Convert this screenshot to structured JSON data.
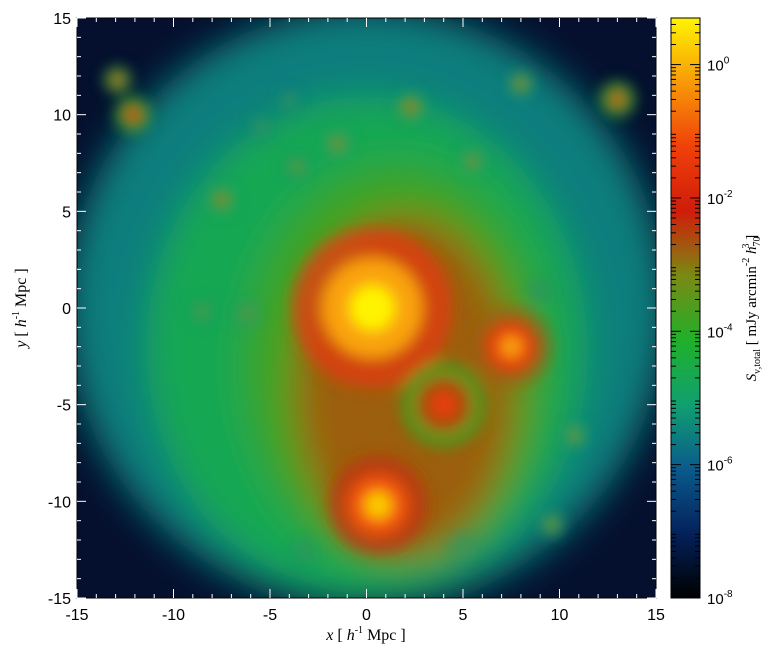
{
  "chart_data": {
    "type": "heatmap",
    "title": "",
    "x_axis": {
      "label_var": "x",
      "label_unit_h": "h",
      "label_unit_exp": "-1",
      "label_unit_rest": "Mpc",
      "range": [
        -15,
        15
      ],
      "ticks": [
        -15,
        -10,
        -5,
        0,
        5,
        10,
        15
      ],
      "tick_labels": [
        "-15",
        "-10",
        "-5",
        "0",
        "5",
        "10",
        "15"
      ]
    },
    "y_axis": {
      "label_var": "y",
      "label_unit_h": "h",
      "label_unit_exp": "-1",
      "label_unit_rest": "Mpc",
      "range": [
        -15,
        15
      ],
      "ticks": [
        -15,
        -10,
        -5,
        0,
        5,
        10,
        15
      ],
      "tick_labels": [
        "-15",
        "-10",
        "-5",
        "0",
        "5",
        "10",
        "15"
      ]
    },
    "colorbar": {
      "scale": "log",
      "range": [
        1e-08,
        5
      ],
      "ticks": [
        1e-08,
        1e-06,
        0.0001,
        0.01,
        1
      ],
      "tick_mantissa": [
        "10",
        "10",
        "10",
        "10",
        "10"
      ],
      "tick_exponents": [
        "-8",
        "-6",
        "-4",
        "-2",
        "0"
      ],
      "label_S": "S",
      "label_sub": "ν,total",
      "label_units_pre": "mJy arcmin",
      "label_units_exp1": "-2",
      "label_units_h": "h",
      "label_units_hsub": "70",
      "label_units_hsup": "3",
      "colors": [
        "#000000",
        "#04215a",
        "#0a5a8c",
        "#10a070",
        "#20b02a",
        "#7a8a14",
        "#d01c0a",
        "#f0400a",
        "#f89a08",
        "#fff400"
      ]
    },
    "sources": [
      {
        "x": 0.3,
        "y": 0.0,
        "level": 1.0,
        "size": 2.6
      },
      {
        "x": 7.5,
        "y": -2.0,
        "level": 0.85,
        "size": 1.3
      },
      {
        "x": 0.6,
        "y": -10.2,
        "level": 0.9,
        "size": 1.6
      },
      {
        "x": 4.0,
        "y": -5.0,
        "level": 0.72,
        "size": 1.4
      },
      {
        "x": -12.9,
        "y": 11.8,
        "level": 0.65,
        "size": 0.45
      },
      {
        "x": -12.1,
        "y": 10.0,
        "level": 0.68,
        "size": 0.6
      },
      {
        "x": 13.0,
        "y": 10.8,
        "level": 0.66,
        "size": 0.6
      },
      {
        "x": 8.0,
        "y": 11.6,
        "level": 0.6,
        "size": 0.4
      },
      {
        "x": 2.3,
        "y": 10.4,
        "level": 0.62,
        "size": 0.45
      },
      {
        "x": -1.5,
        "y": 8.5,
        "level": 0.58,
        "size": 0.45
      },
      {
        "x": -7.5,
        "y": 5.6,
        "level": 0.6,
        "size": 0.45
      },
      {
        "x": -3.6,
        "y": 7.3,
        "level": 0.55,
        "size": 0.4
      },
      {
        "x": 5.5,
        "y": 7.6,
        "level": 0.58,
        "size": 0.4
      },
      {
        "x": -8.5,
        "y": -0.2,
        "level": 0.55,
        "size": 0.35
      },
      {
        "x": -6.2,
        "y": -0.3,
        "level": 0.55,
        "size": 0.4
      },
      {
        "x": 10.8,
        "y": -6.6,
        "level": 0.57,
        "size": 0.4
      },
      {
        "x": 9.6,
        "y": -11.2,
        "level": 0.57,
        "size": 0.4
      },
      {
        "x": 5.0,
        "y": -12.3,
        "level": 0.52,
        "size": 0.35
      },
      {
        "x": -3.2,
        "y": -12.6,
        "level": 0.5,
        "size": 0.3
      },
      {
        "x": -4.0,
        "y": 10.7,
        "level": 0.5,
        "size": 0.3
      },
      {
        "x": -5.5,
        "y": 9.4,
        "level": 0.5,
        "size": 0.3
      },
      {
        "x": 9.0,
        "y": 0.9,
        "level": 0.5,
        "size": 0.3
      }
    ]
  }
}
